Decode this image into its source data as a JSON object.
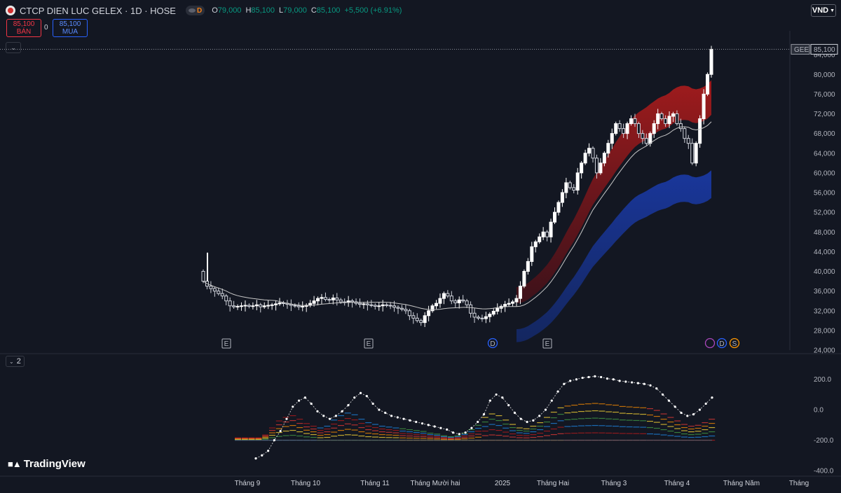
{
  "header": {
    "title": "CTCP DIEN LUC GELEX · 1D · HOSE",
    "data_badge": "D",
    "open_label": "O",
    "open": "79,000",
    "high_label": "H",
    "high": "85,100",
    "low_label": "L",
    "low": "79,000",
    "close_label": "C",
    "close": "85,100",
    "change": "+5,500 (+6.91%)"
  },
  "quote": {
    "sell_price": "85,100",
    "sell_label": "BÁN",
    "spread": "0",
    "buy_price": "85,100",
    "buy_label": "MUA"
  },
  "currency": "VND",
  "oscillator_count": "2",
  "brand": "TradingView",
  "last_price_tag": {
    "symbol": "GEE",
    "price": "85,100"
  },
  "colors": {
    "up": "#089981",
    "down": "#f23645",
    "accent": "#2962ff",
    "background": "#131722"
  },
  "event_markers": {
    "earnings": "E",
    "dividend": "D",
    "split": "S"
  },
  "chart_data": [
    {
      "type": "candlestick",
      "price_axis": {
        "ticks": [
          "24,000",
          "28,000",
          "32,000",
          "36,000",
          "40,000",
          "44,000",
          "48,000",
          "52,000",
          "56,000",
          "60,000",
          "64,000",
          "68,000",
          "72,000",
          "76,000",
          "80,000",
          "84,000"
        ],
        "range": [
          24000,
          88000
        ]
      },
      "time_axis": [
        "Tháng 9",
        "Tháng 10",
        "Tháng 11",
        "Tháng Mười hai",
        "2025",
        "Tháng Hai",
        "Tháng 3",
        "Tháng 4",
        "Tháng Năm",
        "Tháng"
      ],
      "series_close": [
        38000,
        37000,
        36500,
        36000,
        35500,
        35000,
        34000,
        33000,
        32800,
        32900,
        33000,
        33100,
        32900,
        33000,
        33200,
        32800,
        33000,
        33100,
        33200,
        33400,
        33600,
        33500,
        33300,
        33100,
        33000,
        32800,
        32900,
        33100,
        33500,
        34000,
        34500,
        34700,
        34300,
        34200,
        34600,
        34200,
        33800,
        33700,
        34000,
        33800,
        33500,
        33300,
        33400,
        33200,
        33100,
        32900,
        33000,
        33200,
        33100,
        33000,
        32700,
        32500,
        32300,
        32000,
        31000,
        30500,
        30000,
        29600,
        31000,
        32000,
        33000,
        33500,
        34500,
        35500,
        35000,
        34000,
        33600,
        34200,
        34000,
        33200,
        31500,
        30700,
        30500,
        30400,
        30800,
        31300,
        31900,
        32500,
        32900,
        33300,
        33500,
        33800,
        34500,
        37000,
        40000,
        42000,
        45000,
        46000,
        47000,
        48000,
        47000,
        50000,
        52000,
        54000,
        56000,
        58000,
        57000,
        56500,
        60000,
        62000,
        64000,
        65000,
        63000,
        60000,
        62000,
        64000,
        66000,
        68000,
        70000,
        69000,
        68000,
        70000,
        71000,
        70000,
        68000,
        67000,
        66000,
        68000,
        70000,
        72000,
        71000,
        70000,
        71500,
        72000,
        70000,
        69000,
        67000,
        66000,
        62000,
        66000,
        71000,
        76000,
        80000,
        85100
      ]
    },
    {
      "type": "line",
      "y_axis": {
        "ticks": [
          "200.0",
          "0.0",
          "-200.0",
          "-400.0"
        ],
        "range": [
          -400,
          300
        ]
      },
      "series": [
        {
          "values": [
            -320,
            -300,
            -270,
            -200,
            -140,
            -60,
            20,
            60,
            80,
            40,
            -10,
            -40,
            -60,
            -40,
            -10,
            30,
            80,
            110,
            90,
            40,
            0,
            -20,
            -40,
            -50,
            -60,
            -70,
            -80,
            -90,
            -100,
            -110,
            -120,
            -130,
            -150,
            -160,
            -150,
            -120,
            -80,
            -30,
            60,
            100,
            80,
            30,
            -20,
            -60,
            -80,
            -70,
            -40,
            0,
            60,
            120,
            170,
            190,
            200,
            210,
            215,
            220,
            215,
            205,
            200,
            190,
            185,
            180,
            175,
            170,
            160,
            140,
            100,
            60,
            20,
            -20,
            -40,
            -30,
            0,
            40,
            80
          ]
        }
      ]
    }
  ]
}
